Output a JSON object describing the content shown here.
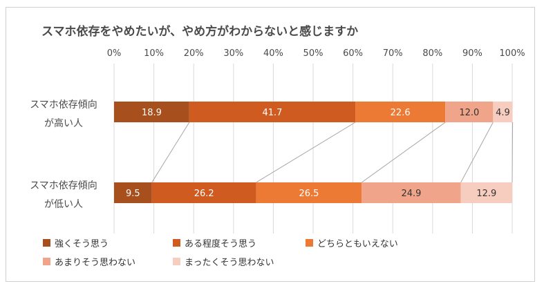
{
  "colors": {
    "frame": "#cfcfcf",
    "text": "#4a4a4a",
    "grid": "#d9d9d9",
    "connector": "#a6a6a6",
    "series": [
      "#a84f1e",
      "#d05b21",
      "#ec7a35",
      "#f0a48a",
      "#f6cdbf"
    ],
    "label_dark": "#ffffff",
    "label_light": "#333333"
  },
  "chart_data": {
    "type": "bar",
    "orientation": "horizontal",
    "stacked": true,
    "title": "スマホ依存をやめたいが、やめ方がわからないと感じますか",
    "xlim": [
      0,
      100
    ],
    "xticks": [
      "0%",
      "10%",
      "20%",
      "30%",
      "40%",
      "50%",
      "60%",
      "70%",
      "80%",
      "90%",
      "100%"
    ],
    "categories": [
      [
        "スマホ依存傾向",
        "が高い人"
      ],
      [
        "スマホ依存傾向",
        "が低い人"
      ]
    ],
    "series": [
      {
        "name": "強くそう思う",
        "values": [
          18.9,
          9.5
        ]
      },
      {
        "name": "ある程度そう思う",
        "values": [
          41.7,
          26.2
        ]
      },
      {
        "name": "どちらともいえない",
        "values": [
          22.6,
          26.5
        ]
      },
      {
        "name": "あまりそう思わない",
        "values": [
          12.0,
          24.9
        ]
      },
      {
        "name": "まったくそう思わない",
        "values": [
          4.9,
          12.9
        ]
      }
    ],
    "data_labels": [
      [
        "18.9",
        "41.7",
        "22.6",
        "12.0",
        "4.9"
      ],
      [
        "9.5",
        "26.2",
        "26.5",
        "24.9",
        "12.9"
      ]
    ],
    "legend_position": "bottom",
    "series_lines": true,
    "grid": true
  }
}
